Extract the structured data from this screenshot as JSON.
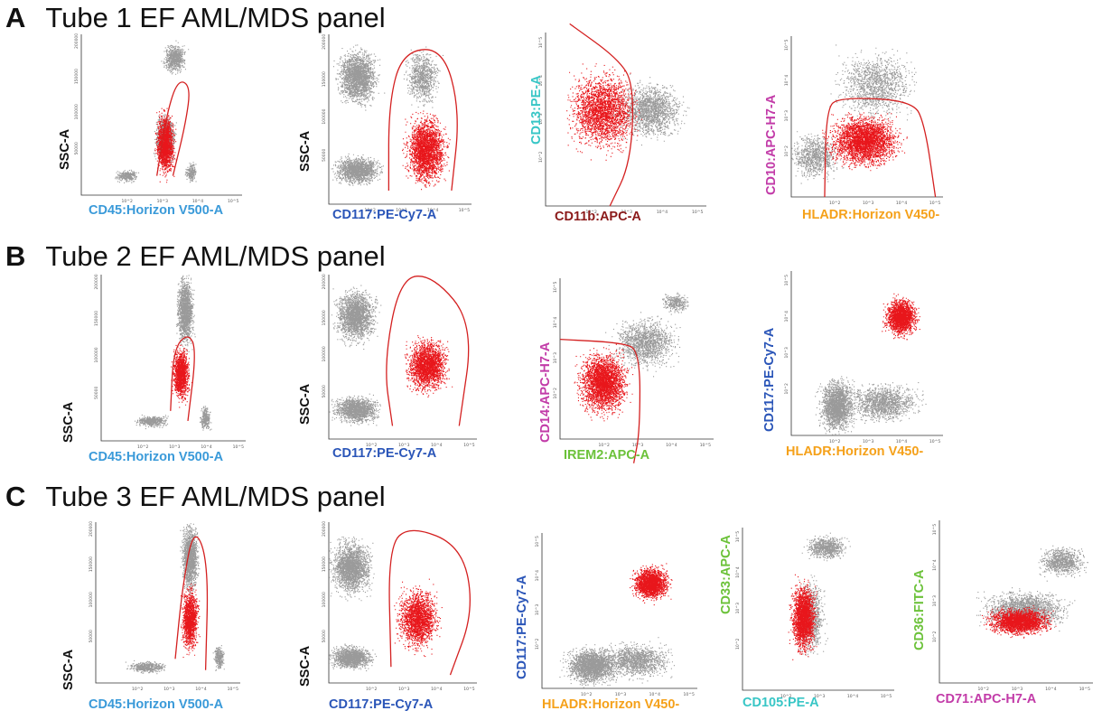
{
  "colors": {
    "ungated": "#9a9a9a",
    "gated": "#e8161b",
    "gate": "#d42020",
    "axis": "#333333"
  },
  "rows": [
    {
      "letter": "A",
      "title": "Tube 1 EF AML/MDS panel"
    },
    {
      "letter": "B",
      "title": "Tube 2 EF AML/MDS panel"
    },
    {
      "letter": "C",
      "title": "Tube 3 EF AML/MDS panel"
    }
  ],
  "chart_data": [
    {
      "id": "A1",
      "type": "scatter",
      "xlabel": "CD45:Horizon V500-A",
      "xlabel_color": "#3a9ad9",
      "ylabel": "SSC-A",
      "ylabel_color": "#111111",
      "x_ticks": [
        "10^2",
        "10^3",
        "10^4",
        "10^5"
      ],
      "y_ticks": [
        "50000",
        "100000",
        "150000",
        "200000"
      ],
      "gated_population": "lymphoblast/blast gate on CD45 dim, low SSC"
    },
    {
      "id": "A2",
      "type": "scatter",
      "xlabel": "CD117:PE-Cy7-A",
      "xlabel_color": "#2a55b8",
      "ylabel": "SSC-A",
      "ylabel_color": "#111111",
      "x_ticks": [
        "10^2",
        "10^3",
        "10^4",
        "10^5"
      ],
      "y_ticks": [
        "50000",
        "100000",
        "150000",
        "200000"
      ],
      "gated_population": "CD117 positive"
    },
    {
      "id": "A3",
      "type": "scatter",
      "xlabel": "CD11b:APC-A",
      "xlabel_color": "#8b1a1a",
      "ylabel": "CD13:PE-A",
      "ylabel_color": "#38c6c6",
      "x_ticks": [
        "10^2",
        "10^3",
        "10^4",
        "10^5"
      ],
      "y_ticks": [
        "10^2",
        "10^3",
        "10^4",
        "10^5"
      ],
      "gated_population": "CD11b negative"
    },
    {
      "id": "A4",
      "type": "scatter",
      "xlabel": "HLADR:Horizon V450-",
      "xlabel_color": "#f5a11a",
      "ylabel": "CD10:APC-H7-A",
      "ylabel_color": "#c23ba8",
      "x_ticks": [
        "10^2",
        "10^3",
        "10^4",
        "10^5"
      ],
      "y_ticks": [
        "10^2",
        "10^3",
        "10^4",
        "10^5"
      ],
      "gated_population": "CD10 negative"
    },
    {
      "id": "B1",
      "type": "scatter",
      "xlabel": "CD45:Horizon V500-A",
      "xlabel_color": "#3a9ad9",
      "ylabel": "SSC-A",
      "ylabel_color": "#111111",
      "x_ticks": [
        "10^2",
        "10^3",
        "10^4",
        "10^5"
      ],
      "y_ticks": [
        "50000",
        "100000",
        "150000",
        "200000"
      ],
      "gated_population": "blast gate"
    },
    {
      "id": "B2",
      "type": "scatter",
      "xlabel": "CD117:PE-Cy7-A",
      "xlabel_color": "#2a55b8",
      "ylabel": "SSC-A",
      "ylabel_color": "#111111",
      "x_ticks": [
        "10^2",
        "10^3",
        "10^4",
        "10^5"
      ],
      "y_ticks": [
        "50000",
        "100000",
        "150000",
        "200000"
      ],
      "gated_population": "CD117 positive"
    },
    {
      "id": "B3",
      "type": "scatter",
      "xlabel": "IREM2:APC-A",
      "xlabel_color": "#6cc23a",
      "ylabel": "CD14:APC-H7-A",
      "ylabel_color": "#c23ba8",
      "x_ticks": [
        "10^2",
        "10^3",
        "10^4",
        "10^5"
      ],
      "y_ticks": [
        "10^2",
        "10^3",
        "10^4",
        "10^5"
      ],
      "gated_population": "IREM2 / CD14 negative"
    },
    {
      "id": "B4",
      "type": "scatter",
      "xlabel": "HLADR:Horizon V450-",
      "xlabel_color": "#f5a11a",
      "ylabel": "CD117:PE-Cy7-A",
      "ylabel_color": "#2a55b8",
      "x_ticks": [
        "10^2",
        "10^3",
        "10^4",
        "10^5"
      ],
      "y_ticks": [
        "10^2",
        "10^3",
        "10^4",
        "10^5"
      ],
      "gated_population": "HLADR+ CD117+"
    },
    {
      "id": "C1",
      "type": "scatter",
      "xlabel": "CD45:Horizon V500-A",
      "xlabel_color": "#3a9ad9",
      "ylabel": "SSC-A",
      "ylabel_color": "#111111",
      "x_ticks": [
        "10^2",
        "10^3",
        "10^4",
        "10^5"
      ],
      "y_ticks": [
        "50000",
        "100000",
        "150000",
        "200000"
      ],
      "gated_population": "blast gate"
    },
    {
      "id": "C2",
      "type": "scatter",
      "xlabel": "CD117:PE-Cy7-A",
      "xlabel_color": "#2a55b8",
      "ylabel": "SSC-A",
      "ylabel_color": "#111111",
      "x_ticks": [
        "10^2",
        "10^3",
        "10^4",
        "10^5"
      ],
      "y_ticks": [
        "50000",
        "100000",
        "150000",
        "200000"
      ],
      "gated_population": "CD117 positive"
    },
    {
      "id": "C3",
      "type": "scatter",
      "xlabel": "HLADR:Horizon V450-",
      "xlabel_color": "#f5a11a",
      "ylabel": "CD117:PE-Cy7-A",
      "ylabel_color": "#2a55b8",
      "x_ticks": [
        "10^2",
        "10^3",
        "10^4",
        "10^5"
      ],
      "y_ticks": [
        "10^2",
        "10^3",
        "10^4",
        "10^5"
      ],
      "gated_population": "HLADR+ CD117+"
    },
    {
      "id": "C4",
      "type": "scatter",
      "xlabel": "CD105:PE-A",
      "xlabel_color": "#38c6c6",
      "ylabel": "CD33:APC-A",
      "ylabel_color": "#6cc23a",
      "x_ticks": [
        "10^2",
        "10^3",
        "10^4",
        "10^5"
      ],
      "y_ticks": [
        "10^2",
        "10^3",
        "10^4",
        "10^5"
      ],
      "gated_population": "CD33+ CD105 dim"
    },
    {
      "id": "C5",
      "type": "scatter",
      "xlabel": "CD71:APC-H7-A",
      "xlabel_color": "#c23ba8",
      "ylabel": "CD36:FITC-A",
      "ylabel_color": "#6cc23a",
      "x_ticks": [
        "10^2",
        "10^3",
        "10^4",
        "10^5"
      ],
      "y_ticks": [
        "10^2",
        "10^3",
        "10^4",
        "10^5"
      ],
      "gated_population": "CD71 / CD36"
    }
  ]
}
